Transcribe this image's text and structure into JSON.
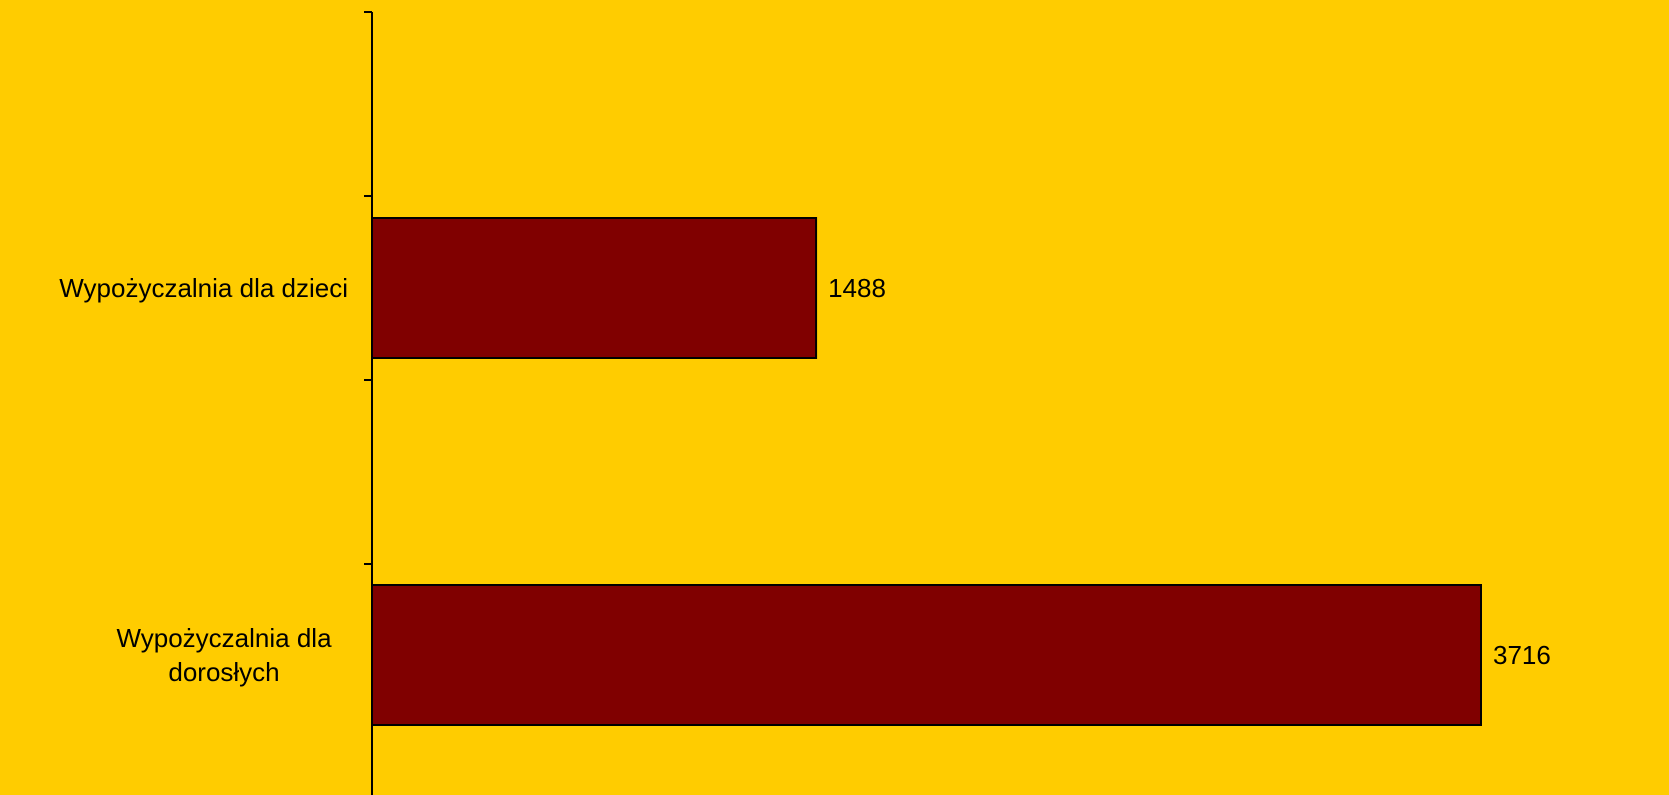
{
  "chart_data": {
    "type": "bar",
    "orientation": "horizontal",
    "categories": [
      "Wypożyczalnia dla dzieci",
      "Wypożyczalnia dla dorosłych"
    ],
    "category_label_lines": [
      [
        "Wypożyczalnia dla dzieci"
      ],
      [
        "Wypożyczalnia dla",
        "dorosłych"
      ]
    ],
    "values": [
      1488,
      3716
    ],
    "data_labels": [
      "1488",
      "3716"
    ],
    "xlim": [
      0,
      3716
    ],
    "title": "",
    "xlabel": "",
    "ylabel": "",
    "grid": false,
    "legend": "none",
    "colors": {
      "background": "#FFCC00",
      "bar_fill": "#800000",
      "bar_stroke": "#000000",
      "axis": "#000000",
      "text": "#000000"
    }
  }
}
